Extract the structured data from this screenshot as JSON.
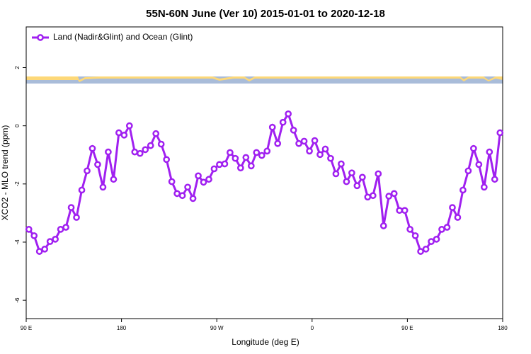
{
  "chart_data": {
    "type": "line",
    "title": "55N-60N June (Ver 10)   2015-01-01 to 2020-12-18",
    "xlabel": "Longitude (deg E)",
    "ylabel": "XCO2 - MLO trend (ppm)",
    "x": [
      92.5,
      97.5,
      102.5,
      107.5,
      112.5,
      117.5,
      122.5,
      127.5,
      132.5,
      137.5,
      142.5,
      147.5,
      152.5,
      157.5,
      162.5,
      167.5,
      172.5,
      177.5,
      182.5,
      187.5,
      192.5,
      197.5,
      202.5,
      207.5,
      212.5,
      217.5,
      222.5,
      227.5,
      232.5,
      237.5,
      242.5,
      247.5,
      252.5,
      257.5,
      262.5,
      267.5,
      272.5,
      277.5,
      282.5,
      287.5,
      292.5,
      297.5,
      302.5,
      307.5,
      312.5,
      317.5,
      322.5,
      327.5,
      332.5,
      337.5,
      342.5,
      347.5,
      352.5,
      357.5,
      362.5,
      367.5,
      372.5,
      377.5,
      382.5,
      387.5,
      392.5,
      397.5,
      402.5,
      407.5,
      412.5,
      417.5,
      422.5,
      427.5,
      432.5,
      437.5,
      442.5,
      447.5,
      452.5,
      457.5,
      462.5,
      467.5,
      472.5,
      477.5,
      482.5,
      487.5,
      492.5,
      497.5,
      502.5,
      507.5,
      512.5,
      517.5,
      522.5,
      527.5,
      532.5,
      537.5
    ],
    "series": [
      {
        "name": "Land (Nadir&Glint) and Ocean (Glint)",
        "color": "#a020f0",
        "values": [
          -3.56,
          -3.78,
          -4.32,
          -4.24,
          -3.98,
          -3.9,
          -3.56,
          -3.49,
          -2.81,
          -3.15,
          -2.21,
          -1.55,
          -0.78,
          -1.33,
          -2.11,
          -0.9,
          -1.84,
          -0.24,
          -0.32,
          0.0,
          -0.9,
          -0.95,
          -0.82,
          -0.68,
          -0.27,
          -0.63,
          -1.16,
          -1.92,
          -2.33,
          -2.4,
          -2.11,
          -2.5,
          -1.72,
          -1.94,
          -1.84,
          -1.48,
          -1.33,
          -1.31,
          -0.92,
          -1.12,
          -1.45,
          -1.09,
          -1.38,
          -0.92,
          -1.02,
          -0.87,
          -0.05,
          -0.61,
          0.12,
          0.41,
          -0.15,
          -0.61,
          -0.53,
          -0.87,
          -0.51,
          -0.99,
          -0.8,
          -1.12,
          -1.65,
          -1.31,
          -1.92,
          -1.62,
          -2.06,
          -1.77,
          -2.45,
          -2.4,
          -1.65,
          -3.44,
          -2.42,
          -2.33,
          -2.91,
          -2.91,
          -3.56,
          -3.78,
          -4.32,
          -4.24,
          -3.98,
          -3.9,
          -3.56,
          -3.49,
          -2.81,
          -3.15,
          -2.21,
          -1.55,
          -0.78,
          -1.33,
          -2.11,
          -0.9,
          -1.84,
          -0.24
        ]
      }
    ],
    "xlim": [
      90,
      540
    ],
    "xticks": [
      {
        "value": 90,
        "label": "90 E"
      },
      {
        "value": 180,
        "label": "180"
      },
      {
        "value": 270,
        "label": "90 W"
      },
      {
        "value": 360,
        "label": "0"
      },
      {
        "value": 450,
        "label": "90 E"
      },
      {
        "value": 540,
        "label": "180"
      }
    ],
    "ylim": [
      -6.63,
      3.4
    ],
    "yticks": [
      -6,
      -4,
      -2,
      0,
      2
    ],
    "legend": "top-left"
  }
}
